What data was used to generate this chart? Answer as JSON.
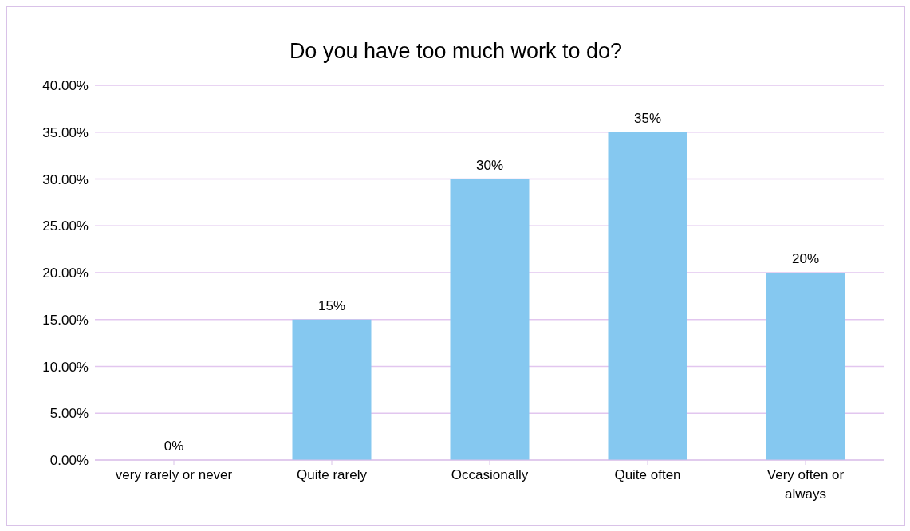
{
  "chart_data": {
    "type": "bar",
    "title": "Do you have too much work to do?",
    "categories": [
      "very rarely or never",
      "Quite rarely",
      "Occasionally",
      "Quite often",
      "Very often or always"
    ],
    "values": [
      0,
      15,
      30,
      35,
      20
    ],
    "value_labels": [
      "0%",
      "15%",
      "30%",
      "35%",
      "20%"
    ],
    "color": "#85c8f0",
    "ylim": [
      0,
      40
    ],
    "yticks": [
      {
        "value": 0,
        "label": "0.00%"
      },
      {
        "value": 5,
        "label": "5.00%"
      },
      {
        "value": 10,
        "label": "10.00%"
      },
      {
        "value": 15,
        "label": "15.00%"
      },
      {
        "value": 20,
        "label": "20.00%"
      },
      {
        "value": 25,
        "label": "25.00%"
      },
      {
        "value": 30,
        "label": "30.00%"
      },
      {
        "value": 35,
        "label": "35.00%"
      },
      {
        "value": 40,
        "label": "40.00%"
      }
    ],
    "grid": "y"
  }
}
